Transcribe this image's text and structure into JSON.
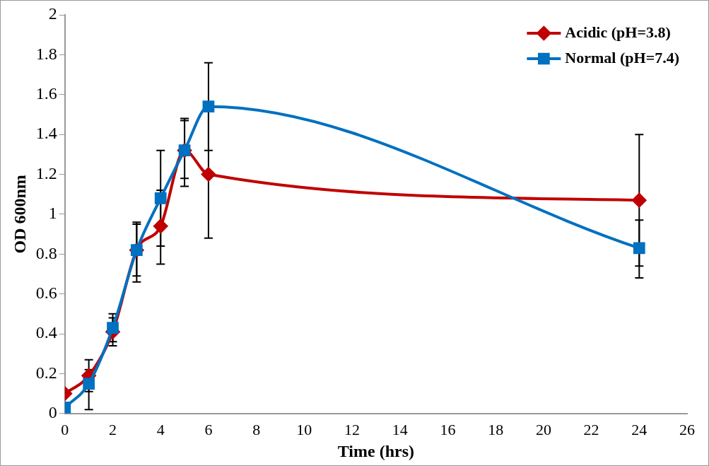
{
  "chart_data": {
    "type": "line",
    "xlabel": "Time (hrs)",
    "ylabel": "OD 600nm",
    "x": [
      0,
      1,
      2,
      3,
      4,
      5,
      6,
      24
    ],
    "series": [
      {
        "name": "Acidic (pH=3.8)",
        "color": "#c00000",
        "marker": "diamond",
        "values": [
          0.1,
          0.19,
          0.41,
          0.82,
          0.94,
          1.32,
          1.2,
          1.07
        ],
        "errors": [
          null,
          [
            0.11,
            0.27
          ],
          [
            0.34,
            0.48
          ],
          [
            0.69,
            0.95
          ],
          [
            0.75,
            1.12
          ],
          [
            1.14,
            1.48
          ],
          [
            0.88,
            1.52
          ],
          [
            0.74,
            1.4
          ]
        ]
      },
      {
        "name": "Normal (pH=7.4)",
        "color": "#0070c0",
        "marker": "square",
        "values": [
          0.03,
          0.15,
          0.43,
          0.82,
          1.08,
          1.32,
          1.54,
          0.83
        ],
        "errors": [
          null,
          [
            0.02,
            0.22
          ],
          [
            0.36,
            0.5
          ],
          [
            0.66,
            0.96
          ],
          [
            0.84,
            1.32
          ],
          [
            1.18,
            1.47
          ],
          [
            1.32,
            1.76
          ],
          [
            0.68,
            0.97
          ]
        ]
      }
    ],
    "xlim": [
      0,
      26
    ],
    "xticks": [
      0,
      2,
      4,
      6,
      8,
      10,
      12,
      14,
      16,
      18,
      20,
      22,
      24,
      26
    ],
    "ylim": [
      0,
      2
    ],
    "yticks": [
      0,
      0.2,
      0.4,
      0.6,
      0.8,
      1,
      1.2,
      1.4,
      1.6,
      1.8,
      2
    ],
    "grid": false,
    "legend": "top right"
  }
}
